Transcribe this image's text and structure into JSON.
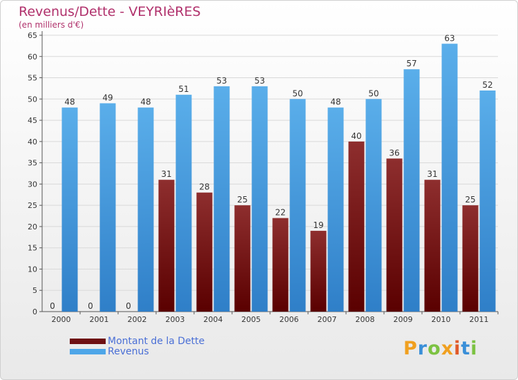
{
  "chart_data": {
    "type": "bar",
    "title": "Revenus/Dette - VEYRIèRES",
    "subtitle": "(en milliers d'€)",
    "categories": [
      "2000",
      "2001",
      "2002",
      "2003",
      "2004",
      "2005",
      "2006",
      "2007",
      "2008",
      "2009",
      "2010",
      "2011"
    ],
    "series": [
      {
        "name": "Montant de la Dette",
        "color": "#6e0f12",
        "values": [
          0,
          0,
          0,
          31,
          28,
          25,
          22,
          19,
          40,
          36,
          31,
          25
        ]
      },
      {
        "name": "Revenus",
        "color": "#4ea6e8",
        "values": [
          48,
          49,
          48,
          51,
          53,
          53,
          50,
          48,
          50,
          57,
          63,
          52
        ]
      }
    ],
    "ylim": [
      0,
      65
    ],
    "yticks": [
      0,
      5,
      10,
      15,
      20,
      25,
      30,
      35,
      40,
      45,
      50,
      55,
      60,
      65
    ],
    "grid": true,
    "legend_position": "bottom-left"
  },
  "logo": {
    "letters": [
      "P",
      "r",
      "o",
      "x",
      "i",
      "t",
      "i"
    ],
    "colors": [
      "#f0a020",
      "#3a8fd8",
      "#7cc242",
      "#f0a020",
      "#e05a2a",
      "#3a8fd8",
      "#7cc242"
    ]
  }
}
